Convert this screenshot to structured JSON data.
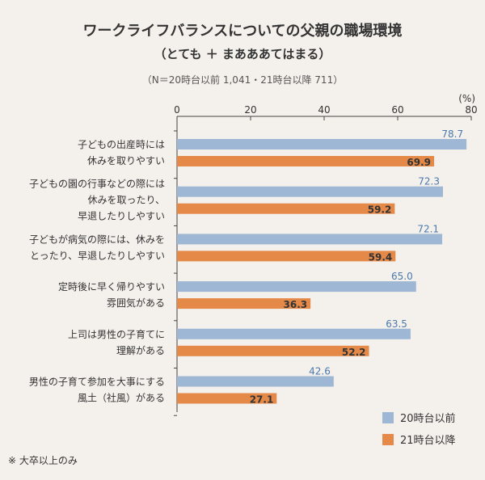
{
  "chart_data": {
    "type": "bar",
    "orientation": "horizontal",
    "title": "ワークライフバランスについての父親の職場環境",
    "subtitle": "（とても ＋ まあああてはまる）",
    "sample_note": "（N＝20時台以前 1,041・21時台以降 711）",
    "unit": "(%)",
    "xlim": [
      0,
      80
    ],
    "xticks": [
      0,
      20,
      40,
      60,
      80
    ],
    "grid": false,
    "legend_position": "bottom-right",
    "categories": [
      [
        "子どもの出産時には",
        "休みを取りやすい"
      ],
      [
        "子どもの園の行事などの際には",
        "休みを取ったり、",
        "早退したりしやすい"
      ],
      [
        "子どもが病気の際には、休みを",
        "とったり、早退したりしやすい"
      ],
      [
        "定時後に早く帰りやすい",
        "雰囲気がある"
      ],
      [
        "上司は男性の子育てに",
        "理解がある"
      ],
      [
        "男性の子育て参加を大事にする",
        "風土（社風）がある"
      ]
    ],
    "series": [
      {
        "name": "20時台以前",
        "color": "#9db7d5",
        "label_color": "#4a78ad",
        "values": [
          78.7,
          72.3,
          72.1,
          65.0,
          63.5,
          42.6
        ]
      },
      {
        "name": "21時台以降",
        "color": "#e58949",
        "label_color": "#333333",
        "values": [
          69.9,
          59.2,
          59.4,
          36.3,
          52.2,
          27.1
        ]
      }
    ]
  },
  "footnote": "※ 大卒以上のみ"
}
